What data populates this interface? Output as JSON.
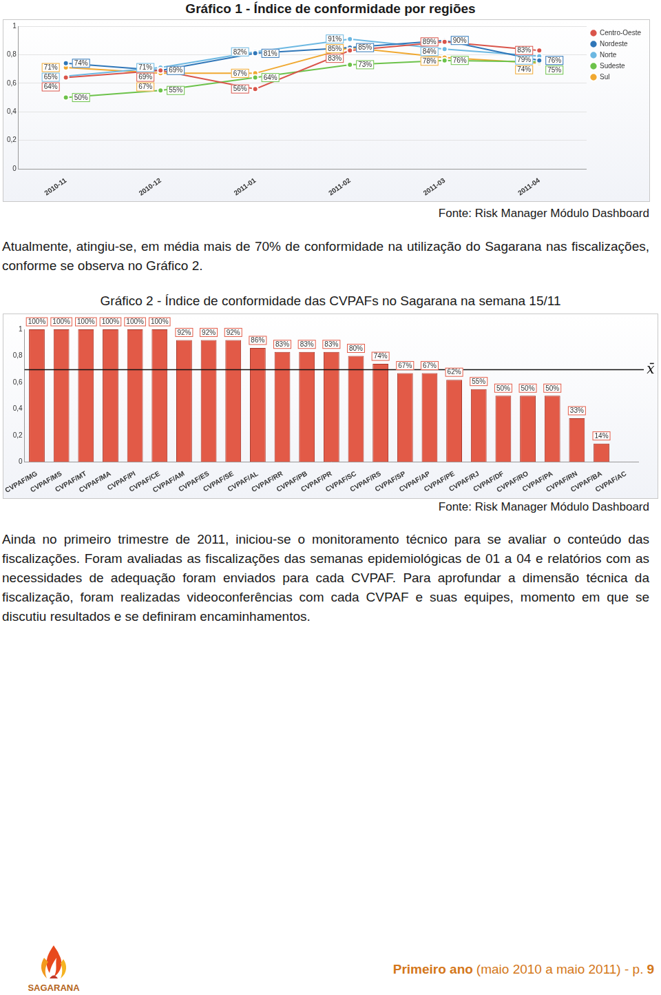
{
  "page": {
    "sources": [
      "Fonte: Risk Manager Módulo Dashboard",
      "Fonte: Risk Manager Módulo Dashboard"
    ],
    "paragraphs": [
      "Atualmente, atingiu-se, em média mais de 70% de conformidade na utilização do Sagarana nas fiscalizações, conforme se observa no Gráfico 2.",
      "Ainda no primeiro trimestre de 2011, iniciou-se o monitoramento técnico para se avaliar o conteúdo das fiscalizações. Foram avaliadas as fiscalizações das semanas epidemiológicas de 01 a 04 e relatórios com as necessidades de adequação foram enviados para cada CVPAF. Para aprofundar a dimensão técnica da fiscalização, foram realizadas videoconferências com cada CVPAF e suas equipes, momento em que se discutiu resultados e se definiram encaminhamentos."
    ],
    "footer": [
      "Primeiro ano",
      "(maio 2010 a maio 2011) - p.",
      "9"
    ],
    "logo": "SAGARANA"
  },
  "chart_data": [
    {
      "type": "line",
      "title": "Gráfico 1 - Índice de conformidade por regiões",
      "categories": [
        "2010-11",
        "2010-12",
        "2011-01",
        "2011-02",
        "2011-03",
        "2011-04"
      ],
      "series": [
        {
          "name": "Centro-Oeste",
          "color": "#d9544a",
          "values": [
            0.64,
            0.69,
            0.56,
            0.83,
            0.89,
            0.83
          ],
          "value_labels": [
            "64%",
            "69%",
            "56%",
            "83%",
            "89%",
            "83%"
          ]
        },
        {
          "name": "Nordeste",
          "color": "#2f76b8",
          "values": [
            0.74,
            0.69,
            0.81,
            0.85,
            0.9,
            0.76
          ],
          "value_labels": [
            "74%",
            "69%",
            "81%",
            "85%",
            "90%",
            "76%"
          ]
        },
        {
          "name": "Norte",
          "color": "#6cb8e2",
          "values": [
            0.65,
            0.71,
            0.82,
            0.91,
            0.84,
            0.79
          ],
          "value_labels": [
            "65%",
            "71%",
            "82%",
            "91%",
            "84%",
            "79%"
          ]
        },
        {
          "name": "Sudeste",
          "color": "#6cc24a",
          "values": [
            0.5,
            0.55,
            0.64,
            0.73,
            0.76,
            0.75
          ],
          "value_labels": [
            "50%",
            "55%",
            "64%",
            "73%",
            "76%",
            "75%"
          ]
        },
        {
          "name": "Sul",
          "color": "#f0a830",
          "values": [
            0.71,
            0.67,
            0.67,
            0.85,
            0.78,
            0.74
          ],
          "value_labels": [
            "71%",
            "67%",
            "67%",
            "85%",
            "78%",
            "74%"
          ]
        }
      ],
      "ylim": [
        0,
        1
      ],
      "yticks": [
        0,
        {
          "value": 0.2,
          "label": "0,2"
        },
        {
          "value": 0.4,
          "label": "0,4"
        },
        {
          "value": 0.6,
          "label": "0,6"
        },
        {
          "value": 0.8,
          "label": "0,8"
        },
        1
      ],
      "grid": true,
      "legend": "top-right",
      "data_labels": true,
      "marker": "circle"
    },
    {
      "type": "bar",
      "title": "Gráfico 2 - Índice de conformidade das CVPAFs no Sagarana na semana 15/11",
      "categories": [
        "CVPAF/MG",
        "CVPAF/MS",
        "CVPAF/MT",
        "CVPAF/MA",
        "CVPAF/PI",
        "CVPAF/CE",
        "CVPAF/AM",
        "CVPAF/ES",
        "CVPAF/SE",
        "CVPAF/AL",
        "CVPAF/RR",
        "CVPAF/PB",
        "CVPAF/PR",
        "CVPAF/SC",
        "CVPAF/RS",
        "CVPAF/SP",
        "CVPAF/AP",
        "CVPAF/PE",
        "CVPAF/RJ",
        "CVPAF/DF",
        "CVPAF/RO",
        "CVPAF/PA",
        "CVPAF/RN",
        "CVPAF/BA",
        "CVPAF/AC"
      ],
      "values": [
        1,
        1,
        1,
        1,
        1,
        1,
        0.92,
        0.92,
        0.92,
        0.86,
        0.83,
        0.83,
        0.83,
        0.8,
        0.74,
        0.67,
        0.67,
        0.62,
        0.55,
        0.5,
        0.5,
        0.5,
        0.33,
        0.14,
        null
      ],
      "value_labels": [
        "100%",
        "100%",
        "100%",
        "100%",
        "100%",
        "100%",
        "92%",
        "92%",
        "92%",
        "86%",
        "83%",
        "83%",
        "83%",
        "80%",
        "74%",
        "67%",
        "67%",
        "62%",
        "55%",
        "50%",
        "50%",
        "50%",
        "33%",
        "14%",
        null
      ],
      "color": "#e25a47",
      "ylim": [
        0,
        1
      ],
      "yticks": [
        0,
        {
          "value": 0.2,
          "label": "0,2"
        },
        {
          "value": 0.4,
          "label": "0,4"
        },
        {
          "value": 0.6,
          "label": "0,6"
        },
        {
          "value": 0.8,
          "label": "0,8"
        },
        1
      ],
      "grid": false,
      "data_labels": true,
      "annotations": [
        {
          "value": 0.7,
          "label": "x̄"
        }
      ]
    }
  ]
}
